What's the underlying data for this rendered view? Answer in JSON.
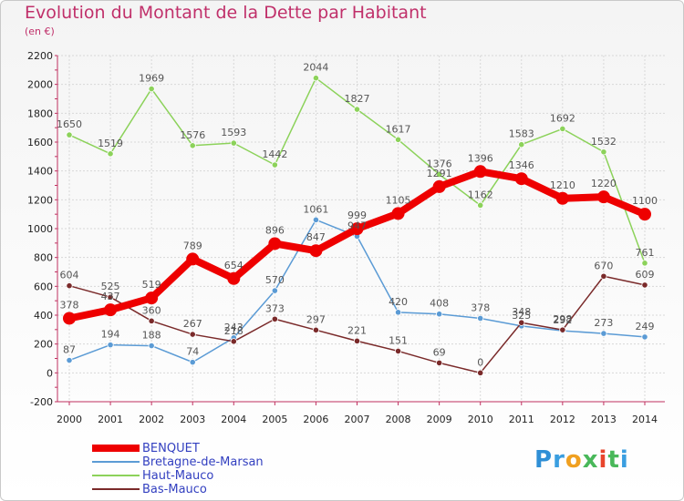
{
  "chart_data": {
    "type": "line",
    "title": "Evolution du Montant de la Dette par Habitant",
    "subtitle": "(en €)",
    "x": [
      "2000",
      "2001",
      "2002",
      "2003",
      "2004",
      "2005",
      "2006",
      "2007",
      "2008",
      "2009",
      "2010",
      "2011",
      "2012",
      "2013",
      "2014"
    ],
    "ylim": [
      -200,
      2200
    ],
    "yticks": [
      -200,
      0,
      200,
      400,
      600,
      800,
      1000,
      1200,
      1400,
      1600,
      1800,
      2000,
      2200
    ],
    "grid": true,
    "legend_position": "bottom-left",
    "series": [
      {
        "name": "BENQUET",
        "color": "#ee0000",
        "values": [
          378,
          437,
          519,
          789,
          654,
          896,
          847,
          999,
          1105,
          1291,
          1396,
          1346,
          1210,
          1220,
          1100
        ]
      },
      {
        "name": "Bretagne-de-Marsan",
        "color": "#5b9bd5",
        "values": [
          87,
          194,
          188,
          74,
          243,
          570,
          1061,
          947,
          420,
          408,
          378,
          325,
          292,
          273,
          249
        ]
      },
      {
        "name": "Haut-Mauco",
        "color": "#8cd25a",
        "values": [
          1650,
          1519,
          1969,
          1576,
          1593,
          1442,
          2044,
          1827,
          1617,
          1376,
          1162,
          1583,
          1692,
          1532,
          761
        ]
      },
      {
        "name": "Bas-Mauco",
        "color": "#7a2a2a",
        "values": [
          604,
          525,
          360,
          267,
          218,
          373,
          297,
          221,
          151,
          69,
          0,
          348,
          298,
          670,
          609
        ]
      }
    ]
  },
  "brand": {
    "letters": [
      "P",
      "r",
      "o",
      "x",
      "i",
      "t",
      "i"
    ]
  }
}
